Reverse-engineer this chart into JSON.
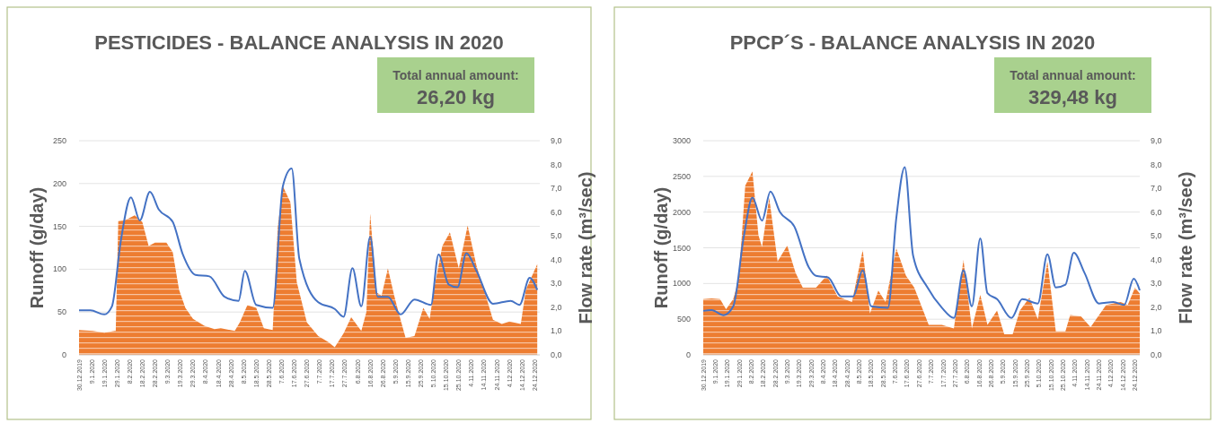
{
  "chart_data": [
    {
      "type": "area",
      "title": "PESTICIDES - BALANCE ANALYSIS IN 2020",
      "ylabel": "Runoff (g/day)",
      "y2label": "Flow rate (m³/sec)",
      "annotations": [
        "Total annual amount:",
        "26,20 kg"
      ],
      "grid": "y",
      "xlim": [
        "2019-12-30",
        "2020-12-28"
      ],
      "xticks": [
        {
          "value": "2019-12-30",
          "label": "30.12.2019"
        },
        {
          "value": "2020-01-09",
          "label": "9.1.2020"
        },
        {
          "value": "2020-01-19",
          "label": "19.1.2020"
        },
        {
          "value": "2020-01-29",
          "label": "29.1.2020"
        },
        {
          "value": "2020-02-08",
          "label": "8.2.2020"
        },
        {
          "value": "2020-02-18",
          "label": "18.2.2020"
        },
        {
          "value": "2020-02-28",
          "label": "28.2.2020"
        },
        {
          "value": "2020-03-09",
          "label": "9.3.2020"
        },
        {
          "value": "2020-03-19",
          "label": "19.3.2020"
        },
        {
          "value": "2020-03-29",
          "label": "29.3.2020"
        },
        {
          "value": "2020-04-08",
          "label": "8.4.2020"
        },
        {
          "value": "2020-04-18",
          "label": "18.4.2020"
        },
        {
          "value": "2020-04-28",
          "label": "28.4.2020"
        },
        {
          "value": "2020-05-08",
          "label": "8.5.2020"
        },
        {
          "value": "2020-05-18",
          "label": "18.5.2020"
        },
        {
          "value": "2020-05-28",
          "label": "28.5.2020"
        },
        {
          "value": "2020-06-07",
          "label": "7.6.2020"
        },
        {
          "value": "2020-06-17",
          "label": "17.6.2020"
        },
        {
          "value": "2020-06-27",
          "label": "27.6.2020"
        },
        {
          "value": "2020-07-07",
          "label": "7.7.2020"
        },
        {
          "value": "2020-07-17",
          "label": "17.7.2020"
        },
        {
          "value": "2020-07-27",
          "label": "27.7.2020"
        },
        {
          "value": "2020-08-06",
          "label": "6.8.2020"
        },
        {
          "value": "2020-08-16",
          "label": "16.8.2020"
        },
        {
          "value": "2020-08-26",
          "label": "26.8.2020"
        },
        {
          "value": "2020-09-05",
          "label": "5.9.2020"
        },
        {
          "value": "2020-09-15",
          "label": "15.9.2020"
        },
        {
          "value": "2020-09-25",
          "label": "25.9.2020"
        },
        {
          "value": "2020-10-05",
          "label": "5.10.2020"
        },
        {
          "value": "2020-10-15",
          "label": "15.10.2020"
        },
        {
          "value": "2020-10-25",
          "label": "25.10.2020"
        },
        {
          "value": "2020-11-04",
          "label": "4.11.2020"
        },
        {
          "value": "2020-11-14",
          "label": "14.11.2020"
        },
        {
          "value": "2020-11-24",
          "label": "24.11.2020"
        },
        {
          "value": "2020-12-04",
          "label": "4.12.2020"
        },
        {
          "value": "2020-12-14",
          "label": "14.12.2020"
        },
        {
          "value": "2020-12-24",
          "label": "24.12.2020"
        }
      ],
      "ylim": [
        0,
        250
      ],
      "yticks": [
        0,
        50,
        100,
        150,
        200,
        250
      ],
      "y2lim": [
        0,
        9
      ],
      "y2ticks": [
        {
          "value": 0,
          "label": "0,0"
        },
        {
          "value": 1,
          "label": "1,0"
        },
        {
          "value": 2,
          "label": "2,0"
        },
        {
          "value": 3,
          "label": "3,0"
        },
        {
          "value": 4,
          "label": "4,0"
        },
        {
          "value": 5,
          "label": "5,0"
        },
        {
          "value": 6,
          "label": "6,0"
        },
        {
          "value": 7,
          "label": "7,0"
        },
        {
          "value": 8,
          "label": "8,0"
        },
        {
          "value": 9,
          "label": "9,0"
        }
      ],
      "series": [
        {
          "color": "#ed7d31",
          "x": [
            "2019-12-30",
            "2020-01-10",
            "2020-01-19",
            "2020-01-27",
            "2020-01-28",
            "2020-01-30",
            "2020-02-04",
            "2020-02-12",
            "2020-02-18",
            "2020-02-23",
            "2020-02-28",
            "2020-03-08",
            "2020-03-13",
            "2020-03-18",
            "2020-03-23",
            "2020-03-29",
            "2020-04-07",
            "2020-04-15",
            "2020-04-20",
            "2020-05-01",
            "2020-05-05",
            "2020-05-11",
            "2020-05-18",
            "2020-05-24",
            "2020-05-31",
            "2020-06-04",
            "2020-06-08",
            "2020-06-14",
            "2020-06-19",
            "2020-06-27",
            "2020-07-06",
            "2020-07-14",
            "2020-07-19",
            "2020-07-26",
            "2020-08-01",
            "2020-08-09",
            "2020-08-13",
            "2020-08-16",
            "2020-08-21",
            "2020-08-25",
            "2020-08-30",
            "2020-09-04",
            "2020-09-09",
            "2020-09-13",
            "2020-09-20",
            "2020-09-27",
            "2020-10-02",
            "2020-10-06",
            "2020-10-12",
            "2020-10-18",
            "2020-10-25",
            "2020-11-01",
            "2020-11-08",
            "2020-11-16",
            "2020-11-21",
            "2020-11-28",
            "2020-12-04",
            "2020-12-13",
            "2020-12-17",
            "2020-12-26"
          ],
          "values": [
            29,
            28,
            26,
            28,
            28,
            156,
            157,
            163,
            155,
            127,
            131,
            131,
            120,
            76,
            55,
            42,
            34,
            30,
            31,
            28,
            38,
            58,
            55,
            31,
            29,
            149,
            197,
            178,
            85,
            38,
            22,
            15,
            9,
            25,
            44,
            28,
            50,
            165,
            73,
            69,
            101,
            69,
            41,
            20,
            22,
            55,
            42,
            81,
            127,
            143,
            101,
            151,
            104,
            66,
            41,
            36,
            39,
            36,
            76,
            106
          ]
        },
        {
          "type": "line",
          "axis": "y2",
          "color": "#4472c4",
          "x": [
            "2019-12-30",
            "2020-01-08",
            "2020-01-19",
            "2020-01-25",
            "2020-02-01",
            "2020-02-09",
            "2020-02-16",
            "2020-02-24",
            "2020-03-02",
            "2020-03-13",
            "2020-03-21",
            "2020-03-31",
            "2020-04-11",
            "2020-04-23",
            "2020-05-04",
            "2020-05-09",
            "2020-05-18",
            "2020-05-31",
            "2020-06-08",
            "2020-06-15",
            "2020-06-21",
            "2020-07-06",
            "2020-07-19",
            "2020-07-26",
            "2020-08-02",
            "2020-08-09",
            "2020-08-16",
            "2020-08-22",
            "2020-08-30",
            "2020-09-09",
            "2020-09-20",
            "2020-10-03",
            "2020-10-09",
            "2020-10-17",
            "2020-10-24",
            "2020-10-31",
            "2020-11-08",
            "2020-11-21",
            "2020-12-05",
            "2020-12-12",
            "2020-12-20",
            "2020-12-26"
          ],
          "values": [
            1.87,
            1.87,
            1.7,
            2.04,
            4.79,
            6.62,
            5.65,
            6.85,
            6.11,
            5.59,
            4.22,
            3.36,
            3.3,
            2.44,
            2.27,
            3.53,
            2.1,
            1.98,
            7.08,
            7.83,
            4.05,
            2.21,
            1.93,
            1.6,
            3.64,
            2.04,
            4.96,
            2.44,
            2.44,
            1.7,
            2.33,
            2.1,
            4.22,
            2.96,
            2.84,
            4.27,
            3.53,
            2.15,
            2.27,
            2.1,
            3.24,
            2.73
          ]
        }
      ]
    },
    {
      "type": "area",
      "title": "PPCP´S - BALANCE ANALYSIS IN 2020",
      "ylabel": "Runoff (g/day)",
      "y2label": "Flow rate (m³/sec)",
      "annotations": [
        "Total annual amount:",
        "329,48 kg"
      ],
      "grid": "y",
      "xlim": [
        "2019-12-30",
        "2020-12-28"
      ],
      "xticks": [
        {
          "value": "2019-12-30",
          "label": "30.12.2019"
        },
        {
          "value": "2020-01-09",
          "label": "9.1.2020"
        },
        {
          "value": "2020-01-19",
          "label": "19.1.2020"
        },
        {
          "value": "2020-01-29",
          "label": "29.1.2020"
        },
        {
          "value": "2020-02-08",
          "label": "8.2.2020"
        },
        {
          "value": "2020-02-18",
          "label": "18.2.2020"
        },
        {
          "value": "2020-02-28",
          "label": "28.2.2020"
        },
        {
          "value": "2020-03-09",
          "label": "9.3.2020"
        },
        {
          "value": "2020-03-19",
          "label": "19.3.2020"
        },
        {
          "value": "2020-03-29",
          "label": "29.3.2020"
        },
        {
          "value": "2020-04-08",
          "label": "8.4.2020"
        },
        {
          "value": "2020-04-18",
          "label": "18.4.2020"
        },
        {
          "value": "2020-04-28",
          "label": "28.4.2020"
        },
        {
          "value": "2020-05-08",
          "label": "8.5.2020"
        },
        {
          "value": "2020-05-18",
          "label": "18.5.2020"
        },
        {
          "value": "2020-05-28",
          "label": "28.5.2020"
        },
        {
          "value": "2020-06-07",
          "label": "7.6.2020"
        },
        {
          "value": "2020-06-17",
          "label": "17.6.2020"
        },
        {
          "value": "2020-06-27",
          "label": "27.6.2020"
        },
        {
          "value": "2020-07-07",
          "label": "7.7.2020"
        },
        {
          "value": "2020-07-17",
          "label": "17.7.2020"
        },
        {
          "value": "2020-07-27",
          "label": "27.7.2020"
        },
        {
          "value": "2020-08-06",
          "label": "6.8.2020"
        },
        {
          "value": "2020-08-16",
          "label": "16.8.2020"
        },
        {
          "value": "2020-08-26",
          "label": "26.8.2020"
        },
        {
          "value": "2020-09-05",
          "label": "5.9.2020"
        },
        {
          "value": "2020-09-15",
          "label": "15.9.2020"
        },
        {
          "value": "2020-09-25",
          "label": "25.9.2020"
        },
        {
          "value": "2020-10-05",
          "label": "5.10.2020"
        },
        {
          "value": "2020-10-15",
          "label": "15.10.2020"
        },
        {
          "value": "2020-10-25",
          "label": "25.10.2020"
        },
        {
          "value": "2020-11-04",
          "label": "4.11.2020"
        },
        {
          "value": "2020-11-14",
          "label": "14.11.2020"
        },
        {
          "value": "2020-11-24",
          "label": "24.11.2020"
        },
        {
          "value": "2020-12-04",
          "label": "4.12.2020"
        },
        {
          "value": "2020-12-14",
          "label": "14.12.2020"
        },
        {
          "value": "2020-12-24",
          "label": "24.12.2020"
        }
      ],
      "ylim": [
        0,
        3000
      ],
      "yticks": [
        0,
        500,
        1000,
        1500,
        2000,
        2500,
        3000
      ],
      "y2lim": [
        0,
        9
      ],
      "y2ticks": [
        {
          "value": 0,
          "label": "0,0"
        },
        {
          "value": 1,
          "label": "1,0"
        },
        {
          "value": 2,
          "label": "2,0"
        },
        {
          "value": 3,
          "label": "3,0"
        },
        {
          "value": 4,
          "label": "4,0"
        },
        {
          "value": 5,
          "label": "5,0"
        },
        {
          "value": 6,
          "label": "6,0"
        },
        {
          "value": 7,
          "label": "7,0"
        },
        {
          "value": 8,
          "label": "8,0"
        },
        {
          "value": 9,
          "label": "9,0"
        }
      ],
      "series": [
        {
          "color": "#ed7d31",
          "x": [
            "2019-12-30",
            "2020-01-06",
            "2020-01-13",
            "2020-01-18",
            "2020-01-24",
            "2020-01-28",
            "2020-01-31",
            "2020-02-03",
            "2020-02-09",
            "2020-02-14",
            "2020-02-17",
            "2020-02-23",
            "2020-03-01",
            "2020-03-09",
            "2020-03-16",
            "2020-03-22",
            "2020-04-02",
            "2020-04-11",
            "2020-04-20",
            "2020-05-02",
            "2020-05-11",
            "2020-05-17",
            "2020-05-24",
            "2020-05-30",
            "2020-06-08",
            "2020-06-16",
            "2020-06-23",
            "2020-07-05",
            "2020-07-16",
            "2020-07-26",
            "2020-08-03",
            "2020-08-10",
            "2020-08-17",
            "2020-08-23",
            "2020-08-31",
            "2020-09-06",
            "2020-09-13",
            "2020-09-19",
            "2020-09-27",
            "2020-10-04",
            "2020-10-12",
            "2020-10-19",
            "2020-10-27",
            "2020-10-31",
            "2020-11-09",
            "2020-11-17",
            "2020-11-30",
            "2020-12-12",
            "2020-12-18",
            "2020-12-24",
            "2020-12-28"
          ],
          "values": [
            780,
            790,
            780,
            640,
            780,
            1020,
            1630,
            2370,
            2570,
            1680,
            1510,
            2200,
            1310,
            1530,
            1150,
            940,
            940,
            1110,
            820,
            740,
            1470,
            580,
            900,
            740,
            1490,
            1110,
            940,
            420,
            420,
            370,
            1330,
            370,
            840,
            420,
            620,
            290,
            290,
            620,
            800,
            500,
            1310,
            330,
            330,
            560,
            540,
            390,
            700,
            740,
            700,
            940,
            860
          ]
        },
        {
          "type": "line",
          "axis": "y2",
          "color": "#4472c4",
          "x": [
            "2019-12-30",
            "2020-01-06",
            "2020-01-16",
            "2020-01-24",
            "2020-02-02",
            "2020-02-09",
            "2020-02-17",
            "2020-02-24",
            "2020-03-03",
            "2020-03-15",
            "2020-03-27",
            "2020-04-02",
            "2020-04-12",
            "2020-04-23",
            "2020-05-03",
            "2020-05-11",
            "2020-05-18",
            "2020-06-01",
            "2020-06-08",
            "2020-06-15",
            "2020-06-22",
            "2020-07-04",
            "2020-07-16",
            "2020-07-26",
            "2020-08-03",
            "2020-08-10",
            "2020-08-17",
            "2020-08-23",
            "2020-08-31",
            "2020-09-12",
            "2020-09-21",
            "2020-10-04",
            "2020-10-12",
            "2020-10-19",
            "2020-10-27",
            "2020-11-03",
            "2020-11-12",
            "2020-11-24",
            "2020-12-06",
            "2020-12-15",
            "2020-12-23",
            "2020-12-28"
          ],
          "values": [
            1.85,
            1.88,
            1.67,
            2.04,
            5.03,
            6.61,
            5.64,
            6.86,
            6.0,
            5.39,
            3.68,
            3.32,
            3.26,
            2.46,
            2.46,
            3.56,
            2.04,
            1.98,
            5.76,
            7.89,
            4.17,
            2.83,
            1.98,
            1.55,
            3.56,
            2.04,
            4.9,
            2.59,
            2.34,
            1.55,
            2.34,
            2.16,
            4.23,
            2.83,
            2.95,
            4.29,
            3.44,
            2.16,
            2.22,
            2.1,
            3.2,
            2.71
          ]
        }
      ]
    }
  ]
}
